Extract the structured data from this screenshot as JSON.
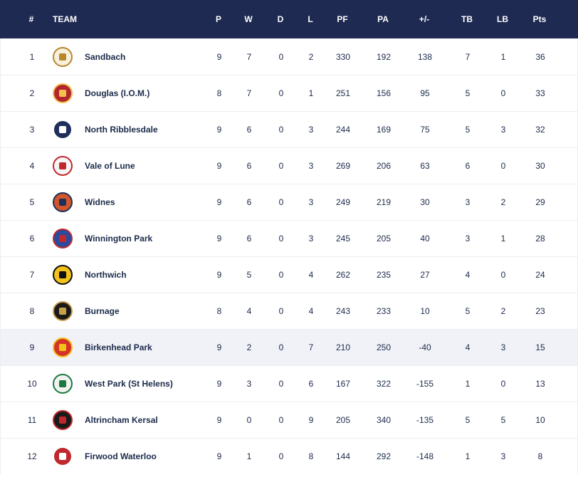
{
  "headers": {
    "pos": "#",
    "team": "TEAM",
    "p": "P",
    "w": "W",
    "d": "D",
    "l": "L",
    "pf": "PF",
    "pa": "PA",
    "diff": "+/-",
    "tb": "TB",
    "lb": "LB",
    "pts": "Pts"
  },
  "rows": [
    {
      "pos": "1",
      "team": "Sandbach",
      "p": "9",
      "w": "7",
      "d": "0",
      "l": "2",
      "pf": "330",
      "pa": "192",
      "diff": "138",
      "tb": "7",
      "lb": "1",
      "pts": "36",
      "crest": {
        "bg": "#f6f0dd",
        "fg": "#b8872b"
      }
    },
    {
      "pos": "2",
      "team": "Douglas (I.O.M.)",
      "p": "8",
      "w": "7",
      "d": "0",
      "l": "1",
      "pf": "251",
      "pa": "156",
      "diff": "95",
      "tb": "5",
      "lb": "0",
      "pts": "33",
      "crest": {
        "bg": "#b3262e",
        "fg": "#f2c14e"
      }
    },
    {
      "pos": "3",
      "team": "North Ribblesdale",
      "p": "9",
      "w": "6",
      "d": "0",
      "l": "3",
      "pf": "244",
      "pa": "169",
      "diff": "75",
      "tb": "5",
      "lb": "3",
      "pts": "32",
      "crest": {
        "bg": "#1f2f5c",
        "fg": "#ffffff"
      }
    },
    {
      "pos": "4",
      "team": "Vale of Lune",
      "p": "9",
      "w": "6",
      "d": "0",
      "l": "3",
      "pf": "269",
      "pa": "206",
      "diff": "63",
      "tb": "6",
      "lb": "0",
      "pts": "30",
      "crest": {
        "bg": "#f5f5f5",
        "fg": "#c0282d"
      }
    },
    {
      "pos": "5",
      "team": "Widnes",
      "p": "9",
      "w": "6",
      "d": "0",
      "l": "3",
      "pf": "249",
      "pa": "219",
      "diff": "30",
      "tb": "3",
      "lb": "2",
      "pts": "29",
      "crest": {
        "bg": "#d2562b",
        "fg": "#1f2f5c"
      }
    },
    {
      "pos": "6",
      "team": "Winnington Park",
      "p": "9",
      "w": "6",
      "d": "0",
      "l": "3",
      "pf": "245",
      "pa": "205",
      "diff": "40",
      "tb": "3",
      "lb": "1",
      "pts": "28",
      "crest": {
        "bg": "#2a4a9e",
        "fg": "#c0282d"
      }
    },
    {
      "pos": "7",
      "team": "Northwich",
      "p": "9",
      "w": "5",
      "d": "0",
      "l": "4",
      "pf": "262",
      "pa": "235",
      "diff": "27",
      "tb": "4",
      "lb": "0",
      "pts": "24",
      "crest": {
        "bg": "#f2c21a",
        "fg": "#111111"
      }
    },
    {
      "pos": "8",
      "team": "Burnage",
      "p": "8",
      "w": "4",
      "d": "0",
      "l": "4",
      "pf": "243",
      "pa": "233",
      "diff": "10",
      "tb": "5",
      "lb": "2",
      "pts": "23",
      "crest": {
        "bg": "#1a1a1a",
        "fg": "#c8a24a"
      }
    },
    {
      "pos": "9",
      "team": "Birkenhead Park",
      "p": "9",
      "w": "2",
      "d": "0",
      "l": "7",
      "pf": "210",
      "pa": "250",
      "diff": "-40",
      "tb": "4",
      "lb": "3",
      "pts": "15",
      "crest": {
        "bg": "#d5332a",
        "fg": "#f2c21a"
      }
    },
    {
      "pos": "10",
      "team": "West Park (St Helens)",
      "p": "9",
      "w": "3",
      "d": "0",
      "l": "6",
      "pf": "167",
      "pa": "322",
      "diff": "-155",
      "tb": "1",
      "lb": "0",
      "pts": "13",
      "crest": {
        "bg": "#f2f2f2",
        "fg": "#1b7a3e"
      }
    },
    {
      "pos": "11",
      "team": "Altrincham Kersal",
      "p": "9",
      "w": "0",
      "d": "0",
      "l": "9",
      "pf": "205",
      "pa": "340",
      "diff": "-135",
      "tb": "5",
      "lb": "5",
      "pts": "10",
      "crest": {
        "bg": "#1a1a1a",
        "fg": "#c0282d"
      }
    },
    {
      "pos": "12",
      "team": "Firwood Waterloo",
      "p": "9",
      "w": "1",
      "d": "0",
      "l": "8",
      "pf": "144",
      "pa": "292",
      "diff": "-148",
      "tb": "1",
      "lb": "3",
      "pts": "8",
      "crest": {
        "bg": "#c0282d",
        "fg": "#ffffff"
      }
    }
  ],
  "highlighted_row": "9"
}
